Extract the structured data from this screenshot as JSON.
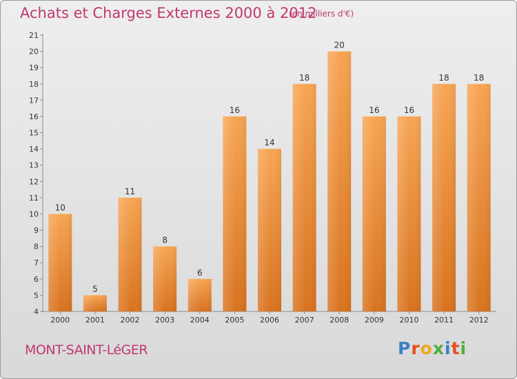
{
  "header": {
    "title": "Achats et Charges Externes 2000 à 2012",
    "subtitle": "(en milliers d'€)"
  },
  "footer": {
    "commune": "MONT-SAINT-LéGER",
    "logo_text": "Proxiti"
  },
  "colors": {
    "bar_top": "#f7a553",
    "bar_bottom": "#d8731f",
    "title": "#c0386f",
    "logo": [
      "#3a7fc4",
      "#e6501f",
      "#f0a81c",
      "#4fae3c",
      "#3a7fc4",
      "#e6501f",
      "#4fae3c"
    ]
  },
  "chart_data": {
    "type": "bar",
    "title": "Achats et Charges Externes 2000 à 2012",
    "subtitle": "(en milliers d'€)",
    "categories": [
      "2000",
      "2001",
      "2002",
      "2003",
      "2004",
      "2005",
      "2006",
      "2007",
      "2008",
      "2009",
      "2010",
      "2011",
      "2012"
    ],
    "values": [
      10,
      5,
      11,
      8,
      6,
      16,
      14,
      18,
      20,
      16,
      16,
      18,
      18
    ],
    "ylim": [
      4,
      21
    ],
    "yticks": [
      4,
      5,
      6,
      7,
      8,
      9,
      10,
      11,
      12,
      13,
      14,
      15,
      16,
      17,
      18,
      19,
      20,
      21
    ],
    "data_labels": true,
    "grid": false,
    "legend": "none"
  }
}
